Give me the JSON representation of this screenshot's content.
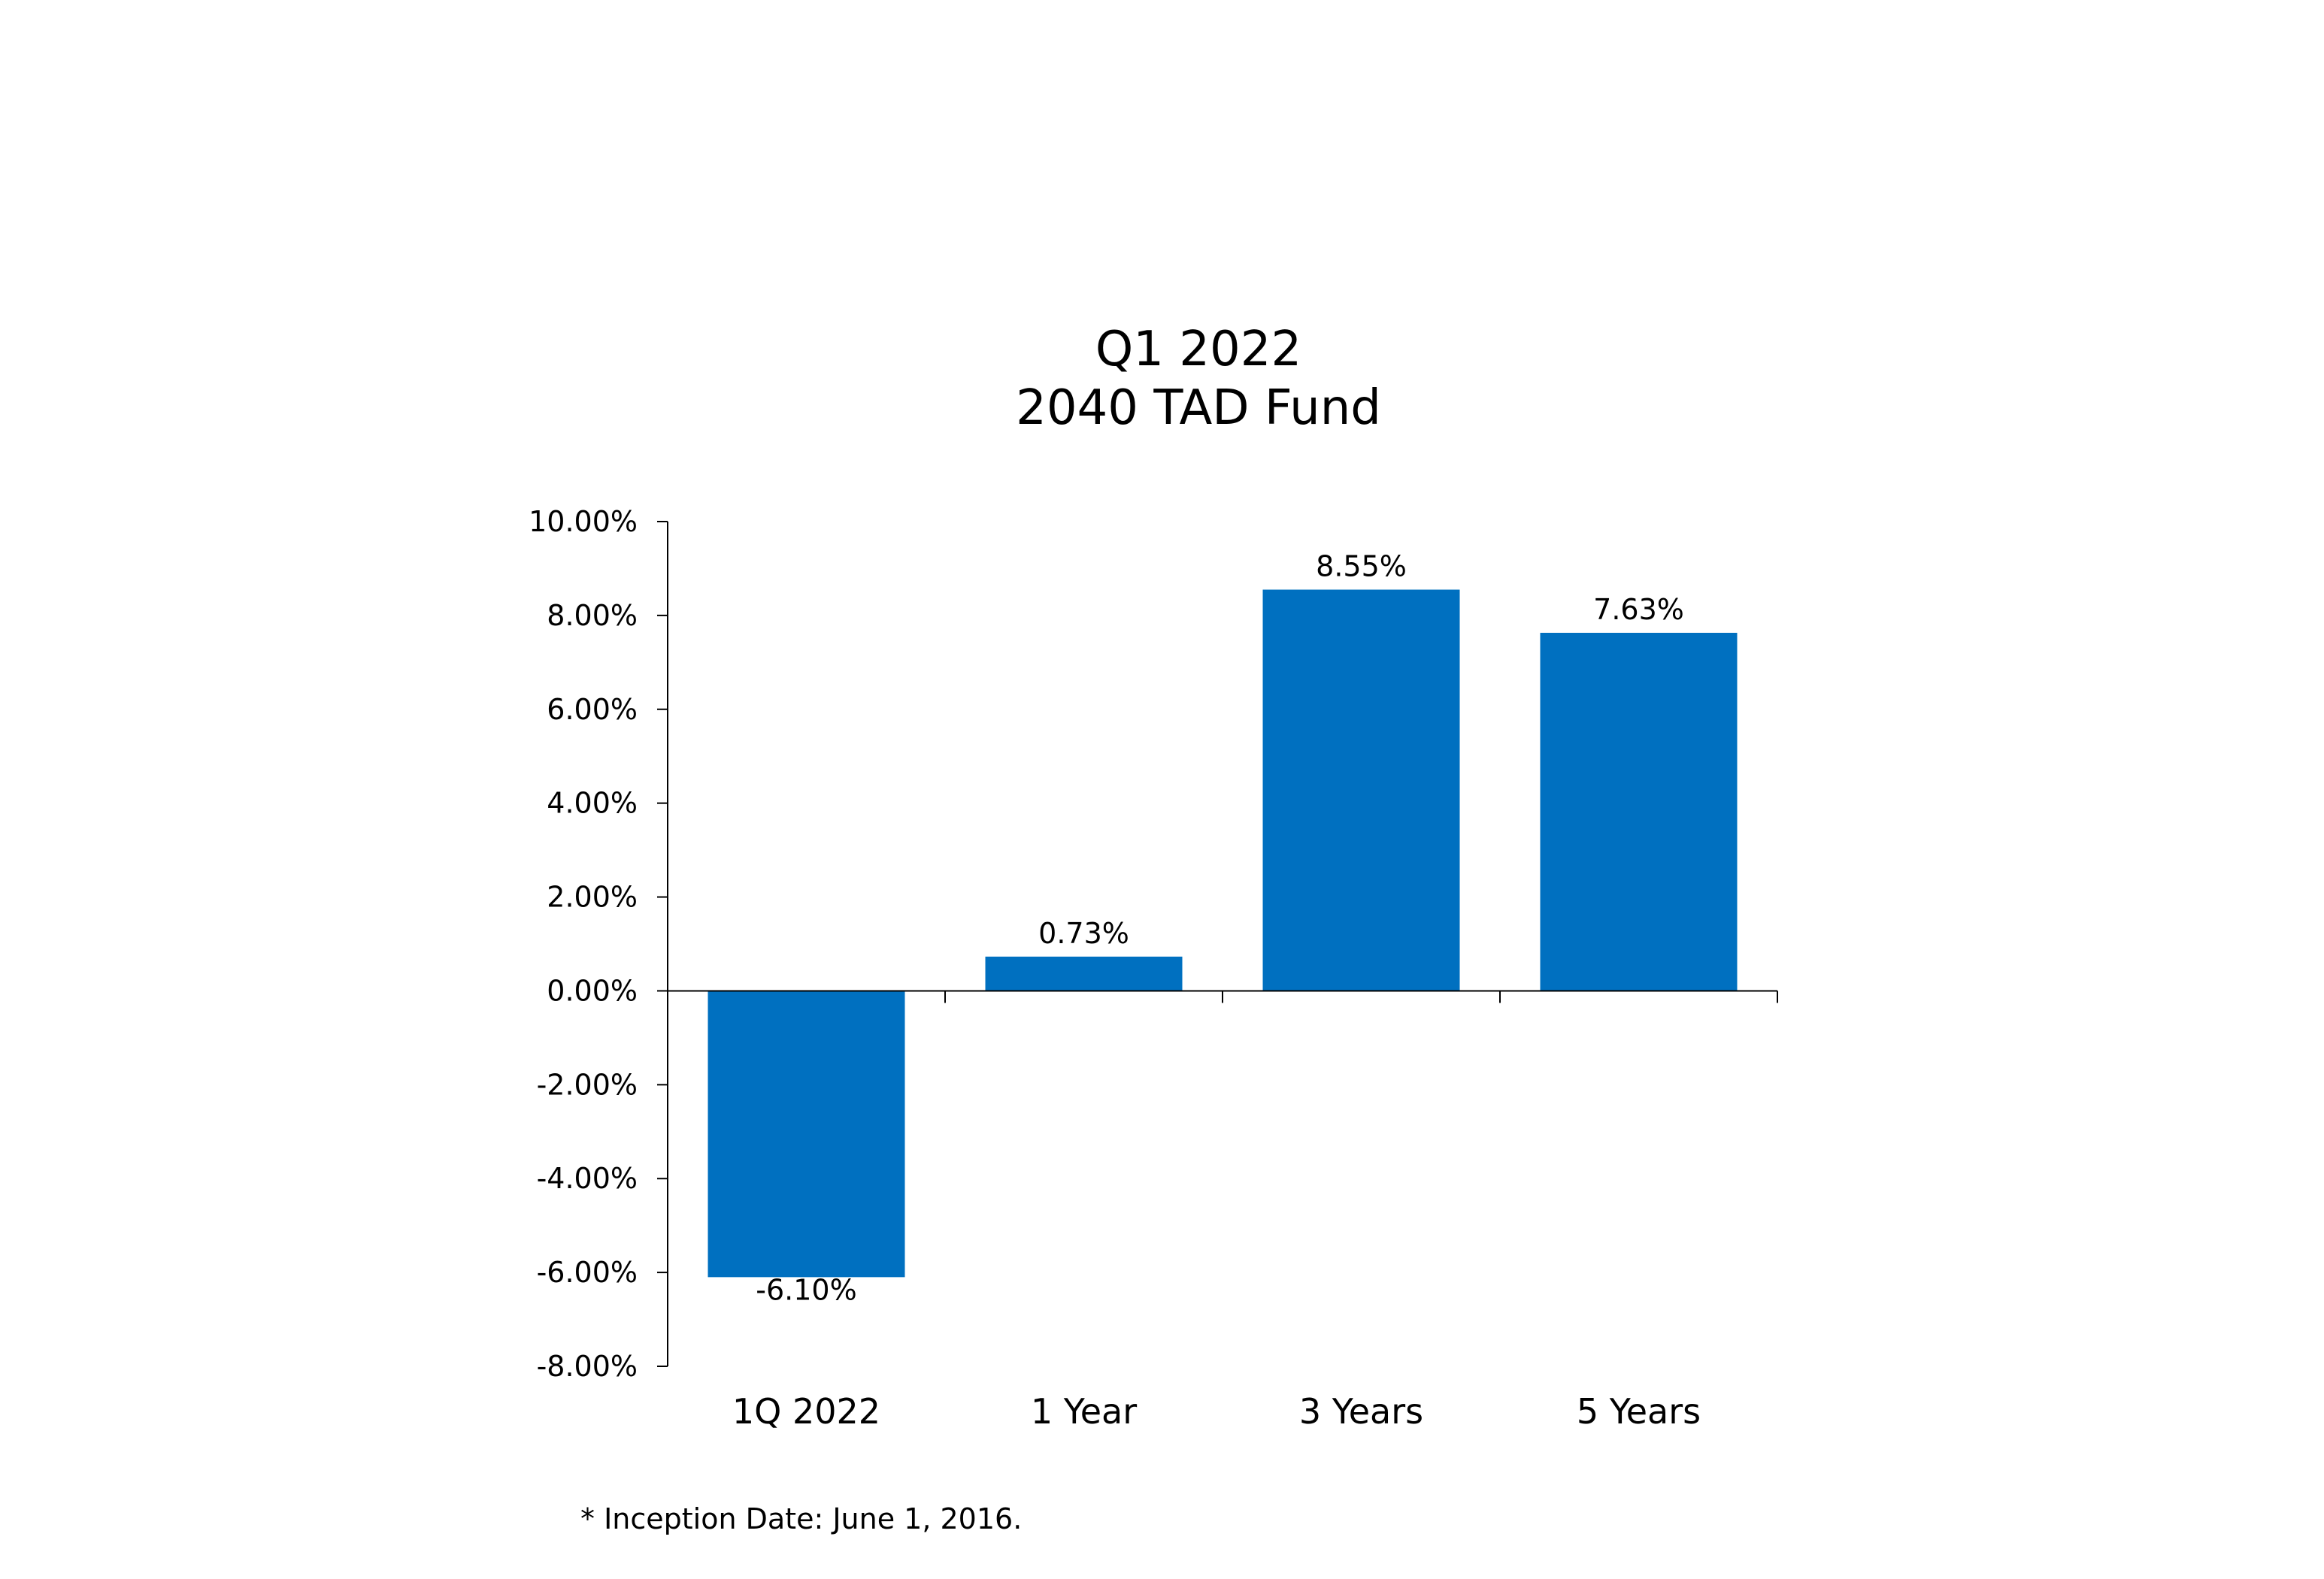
{
  "chart_data": {
    "type": "bar",
    "title": [
      "Q1 2022",
      "2040 TAD Fund"
    ],
    "categories": [
      "1Q 2022",
      "1 Year",
      "3 Years",
      "5 Years"
    ],
    "values": [
      -6.1,
      0.73,
      8.55,
      7.63
    ],
    "data_labels": [
      "-6.10%",
      "0.73%",
      "8.55%",
      "7.63%"
    ],
    "xlabel": "",
    "ylabel": "",
    "ylim": [
      -8,
      10
    ],
    "y_ticks": [
      10,
      8,
      6,
      4,
      2,
      0,
      -2,
      -4,
      -6,
      -8
    ],
    "y_tick_labels": [
      "10.00%",
      "8.00%",
      "6.00%",
      "4.00%",
      "2.00%",
      "0.00%",
      "-2.00%",
      "-4.00%",
      "-6.00%",
      "-8.00%"
    ],
    "grid": false,
    "legend": "none",
    "bar_color": "#0070C0",
    "axis_color": "#000000"
  },
  "footnote": "* Inception Date: June 1, 2016."
}
